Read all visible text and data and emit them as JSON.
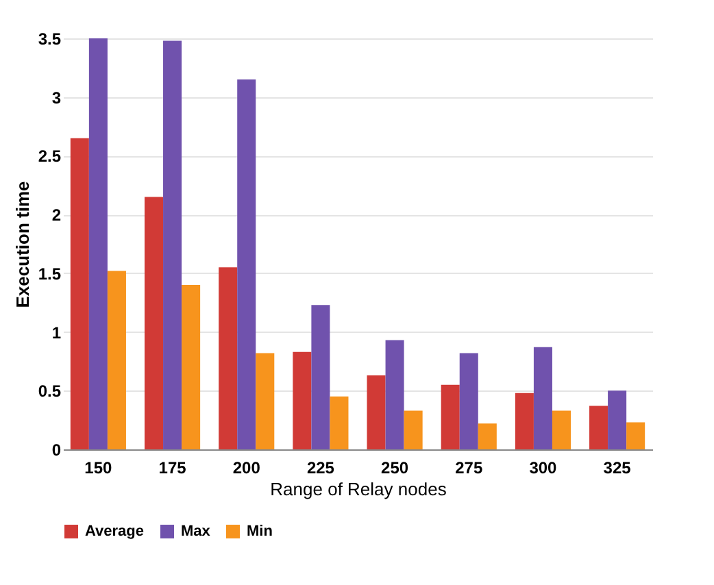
{
  "chart_data": {
    "type": "bar",
    "xlabel": "Range of Relay nodes",
    "ylabel": "Execution time",
    "categories": [
      "150",
      "175",
      "200",
      "225",
      "250",
      "275",
      "300",
      "325"
    ],
    "series": [
      {
        "name": "Average",
        "color": "#d13a36",
        "values": [
          2.65,
          2.15,
          1.55,
          0.83,
          0.63,
          0.55,
          0.48,
          0.37
        ]
      },
      {
        "name": "Max",
        "color": "#7052ad",
        "values": [
          3.5,
          3.48,
          3.15,
          1.23,
          0.93,
          0.82,
          0.87,
          0.5
        ]
      },
      {
        "name": "Min",
        "color": "#f7941d",
        "values": [
          1.52,
          1.4,
          0.82,
          0.45,
          0.33,
          0.22,
          0.33,
          0.23
        ]
      }
    ],
    "ylim": [
      0,
      3.5
    ],
    "yticks": [
      0,
      0.5,
      1,
      1.5,
      2,
      2.5,
      3,
      3.5
    ],
    "grid": "y",
    "legend": "bottom"
  }
}
